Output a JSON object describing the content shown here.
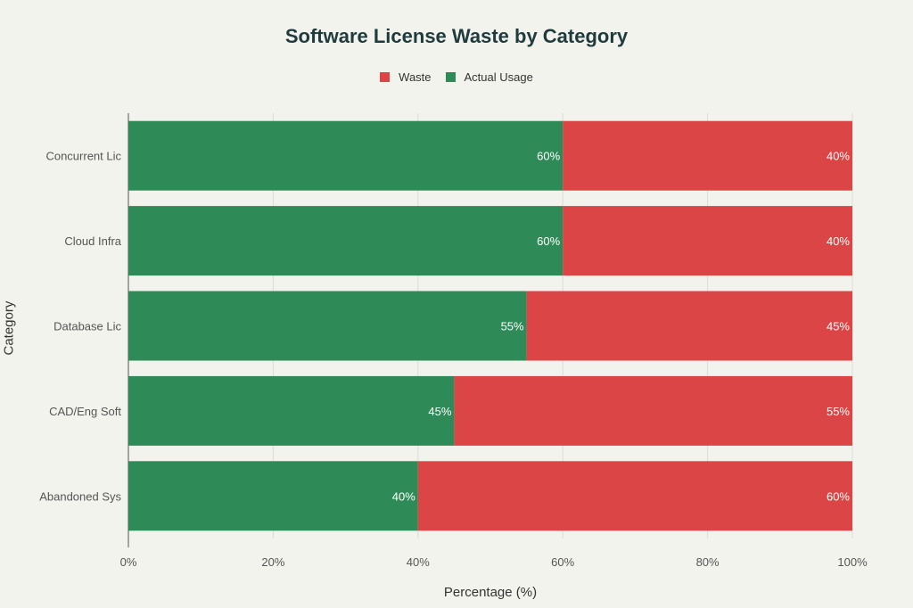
{
  "chart_data": {
    "type": "bar",
    "orientation": "horizontal",
    "stacked": true,
    "title": "Software License Waste by Category",
    "xlabel": "Percentage (%)",
    "ylabel": "Category",
    "categories": [
      "Concurrent Lic",
      "Cloud Infra",
      "Database Lic",
      "CAD/Eng Soft",
      "Abandoned Sys"
    ],
    "series": [
      {
        "name": "Actual Usage",
        "color": "#2e8b57",
        "values": [
          60,
          60,
          55,
          45,
          40
        ]
      },
      {
        "name": "Waste",
        "color": "#db4545",
        "values": [
          40,
          40,
          45,
          55,
          60
        ]
      }
    ],
    "legend_order": [
      "Waste",
      "Actual Usage"
    ],
    "xlim": [
      0,
      100
    ],
    "xticks": [
      "0%",
      "20%",
      "40%",
      "60%",
      "80%",
      "100%"
    ],
    "grid": true,
    "legend_position": "top-center"
  }
}
